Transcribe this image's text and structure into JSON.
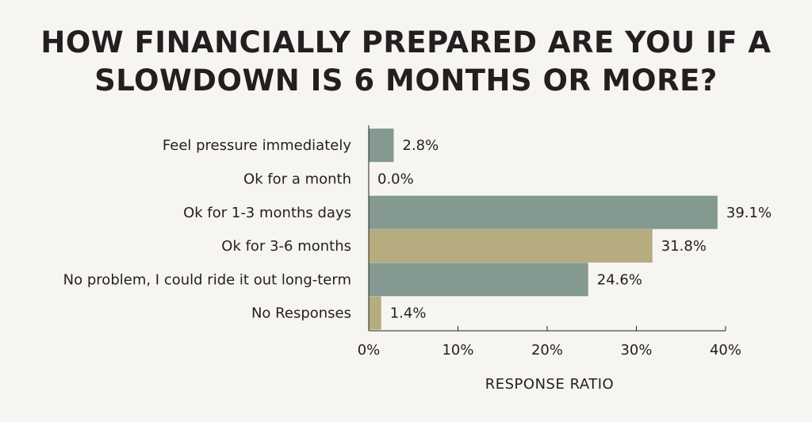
{
  "chart_data": {
    "type": "bar",
    "orientation": "horizontal",
    "title_lines": [
      "HOW FINANCIALLY PREPARED ARE YOU IF A",
      "SLOWDOWN IS 6 MONTHS OR MORE?"
    ],
    "xlabel": "RESPONSE RATIO",
    "ylabel": "",
    "xlim": [
      0,
      40
    ],
    "x_ticks": [
      "0%",
      "10%",
      "20%",
      "30%",
      "40%"
    ],
    "grid": false,
    "categories": [
      "Feel pressure immediately",
      "Ok for a month",
      "Ok for 1-3 months days",
      "Ok for 3-6 months",
      "No problem, I could ride it out long-term",
      "No Responses"
    ],
    "values": [
      2.8,
      0.0,
      39.1,
      31.8,
      24.6,
      1.4
    ],
    "value_labels": [
      "2.8%",
      "0.0%",
      "39.1%",
      "31.8%",
      "24.6%",
      "1.4%"
    ],
    "bar_colors": [
      "#84998f",
      "#84998f",
      "#84998f",
      "#b6ac7f",
      "#84998f",
      "#b6ac7f"
    ]
  }
}
